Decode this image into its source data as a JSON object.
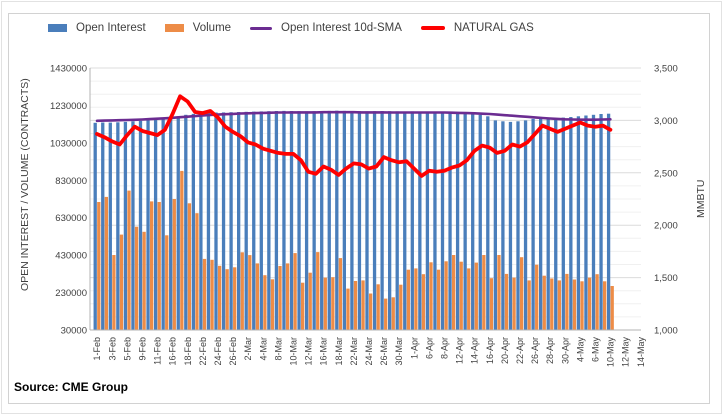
{
  "legend": [
    {
      "label": "Open Interest",
      "color": "#4a7ebb",
      "marker": "bar"
    },
    {
      "label": "Volume",
      "color": "#ed8c47",
      "marker": "bar"
    },
    {
      "label": "Open Interest 10d-SMA",
      "color": "#6b2c91",
      "marker": "line"
    },
    {
      "label": "NATURAL GAS",
      "color": "#fe0000",
      "marker": "line-thick"
    }
  ],
  "left_axis": {
    "title": "OPEN INTEREST / VOLUME (CONTRACTS)",
    "min": 30000,
    "max": 1430000,
    "step": 200000,
    "ticks": [
      "1430000",
      "1230000",
      "1030000",
      "830000",
      "630000",
      "430000",
      "230000",
      "30000"
    ]
  },
  "right_axis": {
    "title": "MMBTU",
    "min": 1000,
    "max": 3500,
    "step": 500,
    "ticks": [
      "3,500",
      "3,000",
      "2,500",
      "2,000",
      "1,500",
      "1,000"
    ]
  },
  "x_axis": {
    "labels": [
      "1-Feb",
      "3-Feb",
      "5-Feb",
      "9-Feb",
      "11-Feb",
      "16-Feb",
      "18-Feb",
      "22-Feb",
      "24-Feb",
      "26-Feb",
      "2-Mar",
      "4-Mar",
      "8-Mar",
      "10-Mar",
      "12-Mar",
      "16-Mar",
      "18-Mar",
      "22-Mar",
      "24-Mar",
      "26-Mar",
      "30-Mar",
      "1-Apr",
      "6-Apr",
      "8-Apr",
      "12-Apr",
      "14-Apr",
      "16-Apr",
      "20-Apr",
      "22-Apr",
      "26-Apr",
      "28-Apr",
      "30-Apr",
      "4-May",
      "6-May",
      "10-May",
      "12-May",
      "14-May"
    ]
  },
  "source": "Source: CME Group",
  "chart_data": {
    "type": "combo",
    "x": [
      "1-Feb",
      "2-Feb",
      "3-Feb",
      "4-Feb",
      "5-Feb",
      "8-Feb",
      "9-Feb",
      "10-Feb",
      "11-Feb",
      "12-Feb",
      "16-Feb",
      "17-Feb",
      "18-Feb",
      "19-Feb",
      "22-Feb",
      "23-Feb",
      "24-Feb",
      "25-Feb",
      "26-Feb",
      "1-Mar",
      "2-Mar",
      "3-Mar",
      "4-Mar",
      "5-Mar",
      "8-Mar",
      "9-Mar",
      "10-Mar",
      "11-Mar",
      "12-Mar",
      "15-Mar",
      "16-Mar",
      "17-Mar",
      "18-Mar",
      "19-Mar",
      "22-Mar",
      "23-Mar",
      "24-Mar",
      "25-Mar",
      "26-Mar",
      "29-Mar",
      "30-Mar",
      "31-Mar",
      "1-Apr",
      "5-Apr",
      "6-Apr",
      "7-Apr",
      "8-Apr",
      "9-Apr",
      "12-Apr",
      "13-Apr",
      "14-Apr",
      "15-Apr",
      "16-Apr",
      "19-Apr",
      "20-Apr",
      "21-Apr",
      "22-Apr",
      "23-Apr",
      "26-Apr",
      "27-Apr",
      "28-Apr",
      "29-Apr",
      "30-Apr",
      "3-May",
      "4-May",
      "5-May",
      "6-May",
      "7-May",
      "10-May"
    ],
    "series": [
      {
        "name": "Open Interest",
        "type": "bar",
        "axis": "left",
        "color": "#4a7ebb",
        "values": [
          1137000,
          1139000,
          1138000,
          1140000,
          1142000,
          1145000,
          1148000,
          1152000,
          1155000,
          1158000,
          1165000,
          1172000,
          1180000,
          1185000,
          1188000,
          1190000,
          1192000,
          1193000,
          1194000,
          1195000,
          1196000,
          1197000,
          1198000,
          1199000,
          1200000,
          1201000,
          1200000,
          1199000,
          1198000,
          1199000,
          1200000,
          1201000,
          1202000,
          1201000,
          1200000,
          1199000,
          1198000,
          1199000,
          1200000,
          1199000,
          1198000,
          1197000,
          1198000,
          1197000,
          1196000,
          1195000,
          1194000,
          1192000,
          1190000,
          1188000,
          1185000,
          1180000,
          1172000,
          1150000,
          1145000,
          1142000,
          1145000,
          1150000,
          1158000,
          1160000,
          1162000,
          1163000,
          1165000,
          1168000,
          1172000,
          1176000,
          1180000,
          1184000,
          1186000
        ]
      },
      {
        "name": "Volume",
        "type": "bar",
        "axis": "left",
        "color": "#ed8c47",
        "values": [
          714000,
          741000,
          431000,
          540000,
          775000,
          582000,
          555000,
          717000,
          714000,
          536000,
          730000,
          880000,
          707000,
          654000,
          410000,
          405000,
          373000,
          355000,
          365000,
          445000,
          430000,
          386000,
          323000,
          301000,
          372000,
          386000,
          441000,
          283000,
          336000,
          446000,
          310000,
          312000,
          414000,
          251000,
          292000,
          295000,
          225000,
          274000,
          198000,
          205000,
          272000,
          352000,
          359000,
          328000,
          392000,
          352000,
          397000,
          431000,
          395000,
          359000,
          390000,
          431000,
          307000,
          431000,
          330000,
          310000,
          419000,
          295000,
          379000,
          320000,
          305000,
          295000,
          330000,
          300000,
          290000,
          310000,
          328000,
          290000,
          265000
        ]
      },
      {
        "name": "Open Interest 10d-SMA",
        "type": "line",
        "axis": "left",
        "color": "#6b2c91",
        "values": [
          1148000,
          1149000,
          1150000,
          1151000,
          1152000,
          1153000,
          1155000,
          1157000,
          1159000,
          1161000,
          1164000,
          1167000,
          1170000,
          1173000,
          1176000,
          1179000,
          1181000,
          1183000,
          1185000,
          1187000,
          1188000,
          1189000,
          1190000,
          1191000,
          1192000,
          1192000,
          1193000,
          1193000,
          1193000,
          1193000,
          1194000,
          1194000,
          1194000,
          1194000,
          1194000,
          1193000,
          1193000,
          1193000,
          1193000,
          1192000,
          1192000,
          1192000,
          1192000,
          1192000,
          1192000,
          1192000,
          1192000,
          1191000,
          1190000,
          1189000,
          1188000,
          1186000,
          1184000,
          1181000,
          1178000,
          1175000,
          1172000,
          1169000,
          1166000,
          1163000,
          1160000,
          1158000,
          1156000,
          1155000,
          1154000,
          1154000,
          1154000,
          1155000,
          1156000
        ]
      },
      {
        "name": "NATURAL GAS",
        "type": "line",
        "axis": "right",
        "color": "#fe0000",
        "values": [
          2870,
          2840,
          2800,
          2770,
          2860,
          2940,
          2900,
          2880,
          2860,
          2910,
          3060,
          3230,
          3180,
          3080,
          3070,
          3090,
          3030,
          2940,
          2890,
          2850,
          2790,
          2770,
          2730,
          2710,
          2690,
          2680,
          2680,
          2620,
          2510,
          2490,
          2560,
          2530,
          2480,
          2540,
          2590,
          2580,
          2540,
          2560,
          2650,
          2620,
          2600,
          2610,
          2540,
          2470,
          2520,
          2510,
          2520,
          2550,
          2570,
          2620,
          2710,
          2760,
          2740,
          2690,
          2710,
          2770,
          2750,
          2790,
          2870,
          2950,
          2920,
          2890,
          2920,
          2950,
          2980,
          2950,
          2940,
          2950,
          2910
        ]
      }
    ],
    "title": "",
    "xlabel": "",
    "ylabel_left": "OPEN INTEREST / VOLUME (CONTRACTS)",
    "ylabel_right": "MMBTU",
    "ylim_left": [
      30000,
      1430000
    ],
    "ylim_right": [
      1000,
      3500
    ],
    "grid": true,
    "legend_position": "top"
  }
}
